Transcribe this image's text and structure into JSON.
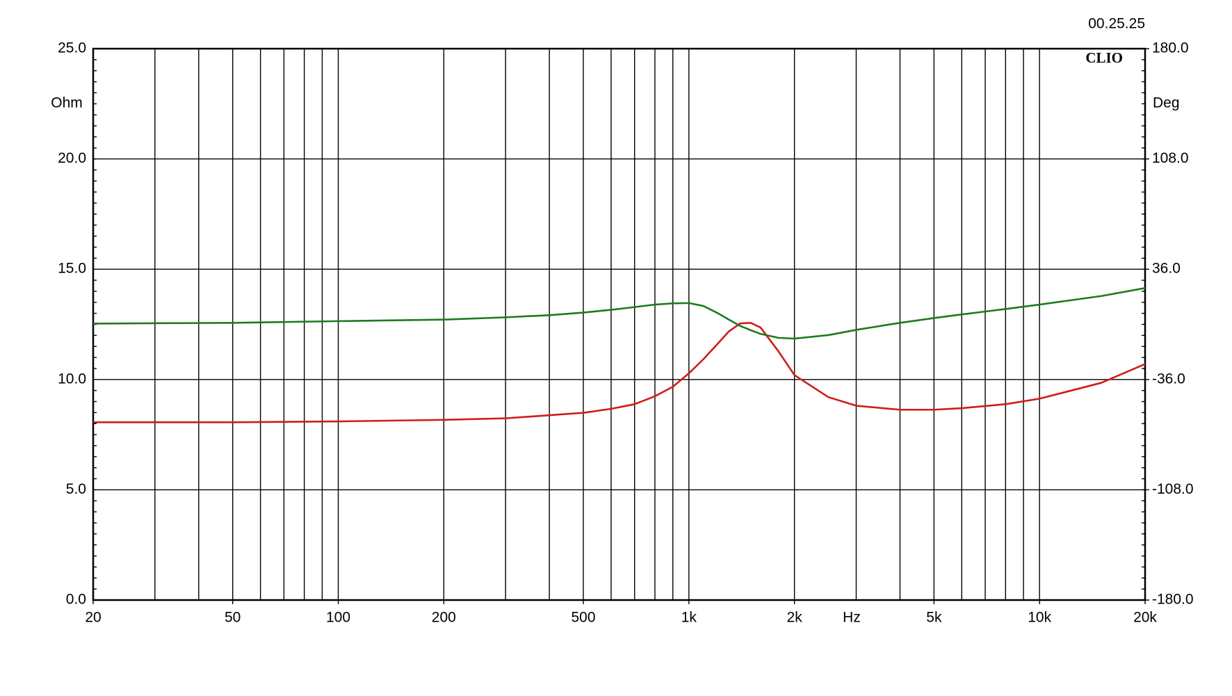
{
  "chart_data": {
    "type": "line",
    "timestamp": "00.25.25",
    "annotation": "CLIO",
    "y_label": "Ohm",
    "y2_label": "Deg",
    "x_label": "Hz",
    "log_x": true,
    "grid": true,
    "x": [
      20,
      50,
      100,
      200,
      300,
      400,
      500,
      600,
      700,
      800,
      900,
      1000,
      1100,
      1200,
      1300,
      1400,
      1500,
      1600,
      1800,
      2000,
      2500,
      3000,
      4000,
      5000,
      6000,
      8000,
      10000,
      15000,
      20000
    ],
    "series": [
      {
        "color": "#d21a1a",
        "axis": "y",
        "values": [
          8.06,
          8.06,
          8.1,
          8.17,
          8.24,
          8.38,
          8.49,
          8.67,
          8.88,
          9.24,
          9.67,
          10.28,
          10.92,
          11.57,
          12.18,
          12.54,
          12.57,
          12.36,
          11.28,
          10.2,
          9.2,
          8.81,
          8.63,
          8.63,
          8.7,
          8.88,
          9.13,
          9.85,
          10.7
        ]
      },
      {
        "color": "#1e7a1e",
        "axis": "y2",
        "values": [
          0.5,
          1.0,
          2.1,
          3.1,
          4.6,
          6.0,
          7.7,
          9.5,
          11.3,
          12.9,
          13.7,
          13.9,
          12.0,
          7.7,
          3.1,
          -1.0,
          -3.8,
          -6.2,
          -8.8,
          -9.3,
          -7.0,
          -3.6,
          1.0,
          4.1,
          6.5,
          10.0,
          12.9,
          18.5,
          23.7
        ]
      }
    ],
    "xlim": [
      20,
      20000
    ],
    "xticks": [
      20,
      50,
      100,
      200,
      500,
      {
        "value": 1000,
        "label": "1k"
      },
      {
        "value": 2000,
        "label": "2k"
      },
      {
        "value": 5000,
        "label": "5k"
      },
      {
        "value": 10000,
        "label": "10k"
      },
      {
        "value": 20000,
        "label": "20k"
      }
    ],
    "ylim": [
      0,
      25
    ],
    "yticks": [
      {
        "value": 0,
        "label": "0.0"
      },
      {
        "value": 5,
        "label": "5.0"
      },
      {
        "value": 10,
        "label": "10.0"
      },
      {
        "value": 15,
        "label": "15.0"
      },
      {
        "value": 20,
        "label": "20.0"
      },
      {
        "value": 25,
        "label": "25.0"
      }
    ],
    "y2lim": [
      -180,
      180
    ],
    "y2ticks": [
      {
        "value": -180,
        "label": "-180.0"
      },
      {
        "value": -108,
        "label": "-108.0"
      },
      {
        "value": -36,
        "label": "-36.0"
      },
      {
        "value": 36,
        "label": "36.0"
      },
      {
        "value": 108,
        "label": "108.0"
      },
      {
        "value": 180,
        "label": "180.0"
      }
    ]
  }
}
